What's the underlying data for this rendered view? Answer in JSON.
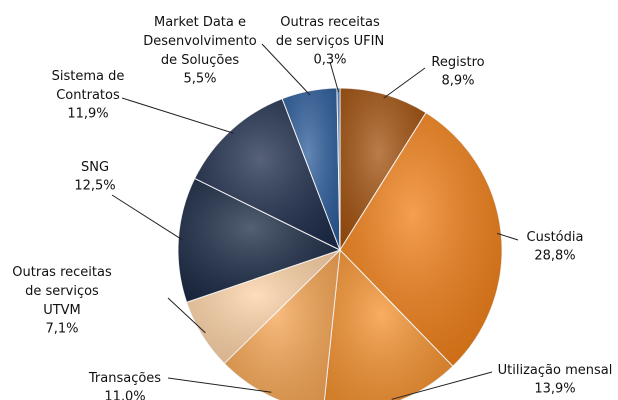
{
  "chart_data": {
    "type": "pie",
    "categories": [
      "Registro",
      "Custódia",
      "Utilização mensal",
      "Transações",
      "Outras receitas\nde serviços\nUTVM",
      "SNG",
      "Sistema de\nContratos",
      "Market Data e\nDesenvolvimento\nde Soluções",
      "Outras receitas\nde serviços UFIN"
    ],
    "values": [
      8.9,
      28.8,
      13.9,
      11.0,
      7.1,
      12.5,
      11.9,
      5.5,
      0.3
    ],
    "value_labels": [
      "8,9%",
      "28,8%",
      "13,9%",
      "11,0%",
      "7,1%",
      "12,5%",
      "11,9%",
      "5,5%",
      "0,3%"
    ],
    "colors": [
      "#a3520f",
      "#f07f17",
      "#f5922f",
      "#f7a654",
      "#fcd2a6",
      "#1b2a45",
      "#1f2e4c",
      "#2e5e9c",
      "#4a7bc0"
    ]
  }
}
